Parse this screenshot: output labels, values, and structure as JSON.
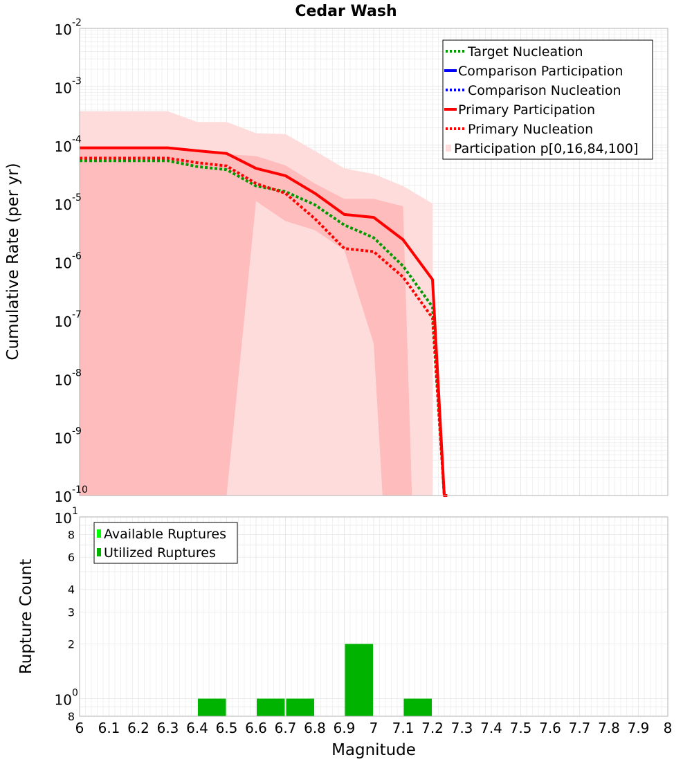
{
  "title": "Cedar Wash",
  "xlabel": "Magnitude",
  "colors": {
    "target": "#009900",
    "comparison": "#0000ff",
    "primary": "#ff0000",
    "band_outer": "#ffdcdc",
    "band_inner": "#ffbcbc",
    "available": "#00ff00",
    "utilized": "#00b300",
    "grid": "#e8e8e8",
    "frame": "#b0b0b0"
  },
  "x_ticks": [
    "6",
    "6.1",
    "6.2",
    "6.3",
    "6.4",
    "6.5",
    "6.6",
    "6.7",
    "6.8",
    "6.9",
    "7",
    "7.1",
    "7.2",
    "7.3",
    "7.4",
    "7.5",
    "7.6",
    "7.7",
    "7.8",
    "7.9",
    "8"
  ],
  "chart_data": [
    {
      "type": "line",
      "scale": "log",
      "title": "Cedar Wash",
      "xlabel": "Magnitude",
      "ylabel": "Cumulative Rate (per yr)",
      "xlim": [
        6,
        8
      ],
      "ylim": [
        1e-10,
        0.01
      ],
      "y_ticks": [
        {
          "base": "10",
          "exp": "-2"
        },
        {
          "base": "10",
          "exp": "-3"
        },
        {
          "base": "10",
          "exp": "-4"
        },
        {
          "base": "10",
          "exp": "-5"
        },
        {
          "base": "10",
          "exp": "-6"
        },
        {
          "base": "10",
          "exp": "-7"
        },
        {
          "base": "10",
          "exp": "-8"
        },
        {
          "base": "10",
          "exp": "-9"
        },
        {
          "base": "10",
          "exp": "-10"
        }
      ],
      "legend_position": "top-right",
      "legend": [
        {
          "label": "Target Nucleation",
          "style": "dotted",
          "series": "target"
        },
        {
          "label": "Comparison Participation",
          "style": "solid",
          "series": "comparison"
        },
        {
          "label": "Comparison Nucleation",
          "style": "dotted",
          "series": "comparison"
        },
        {
          "label": "Primary Participation",
          "style": "solid",
          "series": "primary"
        },
        {
          "label": "Primary Nucleation",
          "style": "dotted",
          "series": "primary"
        },
        {
          "label": "Participation p[0,16,84,100]",
          "style": "box",
          "series": "band"
        }
      ],
      "x": [
        6.0,
        6.1,
        6.2,
        6.3,
        6.4,
        6.5,
        6.6,
        6.7,
        6.8,
        6.9,
        7.0,
        7.1,
        7.2,
        7.24,
        7.25
      ],
      "series": [
        {
          "name": "Primary Participation",
          "values": [
            9e-05,
            9e-05,
            9e-05,
            9e-05,
            8e-05,
            7.2e-05,
            4e-05,
            3e-05,
            1.5e-05,
            6.5e-06,
            5.8e-06,
            2.4e-06,
            5e-07,
            1e-10,
            1e-10
          ]
        },
        {
          "name": "Primary Nucleation",
          "values": [
            6e-05,
            6e-05,
            6e-05,
            6e-05,
            5e-05,
            4.4e-05,
            2.2e-05,
            1.5e-05,
            5.5e-06,
            1.7e-06,
            1.5e-06,
            5.5e-07,
            1.1e-07,
            1e-10,
            1e-10
          ]
        },
        {
          "name": "Target Nucleation",
          "values": [
            5.4e-05,
            5.4e-05,
            5.4e-05,
            5.4e-05,
            4.3e-05,
            3.8e-05,
            2e-05,
            1.6e-05,
            9.5e-06,
            4.3e-06,
            2.6e-06,
            8.5e-07,
            1.7e-07,
            1e-10,
            1e-10
          ]
        }
      ],
      "band_outer": {
        "x": [
          6.0,
          6.1,
          6.2,
          6.3,
          6.4,
          6.5,
          6.6,
          6.7,
          6.8,
          6.9,
          7.0,
          7.1,
          7.2
        ],
        "upper": [
          0.00038,
          0.00038,
          0.00038,
          0.00038,
          0.00025,
          0.00025,
          0.00016,
          0.000155,
          8e-05,
          4e-05,
          3.2e-05,
          2e-05,
          1e-05
        ],
        "lower": [
          1e-10,
          1e-10,
          1e-10,
          1e-10,
          1e-10,
          1e-10,
          1e-10,
          1e-10,
          1e-10,
          1e-10,
          1e-10,
          1e-10,
          1e-10
        ]
      },
      "band_inner": {
        "x": [
          6.0,
          6.1,
          6.2,
          6.3,
          6.4,
          6.5,
          6.6,
          6.7,
          6.8,
          6.9,
          7.0,
          7.03,
          7.1,
          7.13
        ],
        "upper": [
          9e-05,
          9e-05,
          9e-05,
          9e-05,
          8e-05,
          7e-05,
          6.5e-05,
          4.5e-05,
          2.2e-05,
          1.2e-05,
          1.2e-05,
          1.1e-05,
          9e-06,
          1e-10
        ],
        "lower": [
          1e-10,
          1e-10,
          1e-10,
          1e-10,
          1e-10,
          1e-10,
          1.1e-05,
          5e-06,
          3.5e-06,
          1.6e-06,
          4e-08,
          1e-10,
          1e-10,
          1e-10
        ]
      }
    },
    {
      "type": "bar",
      "scale": "log",
      "xlabel": "Magnitude",
      "ylabel": "Rupture Count",
      "xlim": [
        6,
        8
      ],
      "ylim": [
        0.8,
        10
      ],
      "y_ticks": [
        {
          "label": "10",
          "exp": "1",
          "value": 10
        },
        {
          "label": "8",
          "exp": "",
          "value": 8
        },
        {
          "label": "6",
          "exp": "",
          "value": 6
        },
        {
          "label": "4",
          "exp": "",
          "value": 4
        },
        {
          "label": "3",
          "exp": "",
          "value": 3
        },
        {
          "label": "2",
          "exp": "",
          "value": 2
        },
        {
          "label": "10",
          "exp": "0",
          "value": 1
        },
        {
          "label": "8",
          "exp": "",
          "value": 0.8
        }
      ],
      "legend_position": "top-left",
      "legend": [
        {
          "label": "Available Ruptures",
          "series": "available"
        },
        {
          "label": "Utilized Ruptures",
          "series": "utilized"
        }
      ],
      "bars": [
        {
          "x0": 6.4,
          "x1": 6.5,
          "value": 1
        },
        {
          "x0": 6.6,
          "x1": 6.7,
          "value": 1
        },
        {
          "x0": 6.7,
          "x1": 6.8,
          "value": 1
        },
        {
          "x0": 6.9,
          "x1": 7.0,
          "value": 2
        },
        {
          "x0": 7.1,
          "x1": 7.2,
          "value": 1
        }
      ]
    }
  ]
}
